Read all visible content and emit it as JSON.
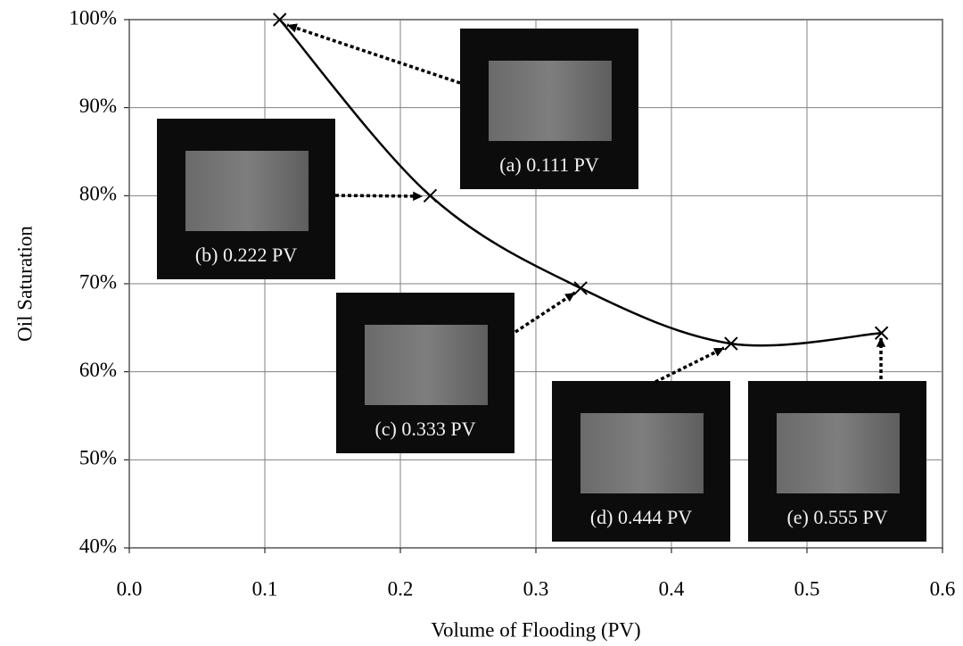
{
  "chart_data": {
    "type": "line",
    "x_label": "Volume of Flooding (PV)",
    "y_label": "Oil Saturation",
    "series": [
      {
        "color": "#000000",
        "x": [
          0.111,
          0.222,
          0.333,
          0.444,
          0.555
        ],
        "values": [
          100,
          80,
          69.5,
          63.2,
          64.4
        ]
      }
    ],
    "xlim": [
      0,
      0.6
    ],
    "xticks": [
      {
        "value": 0,
        "label": "0.0"
      },
      0.1,
      0.2,
      0.3,
      0.4,
      0.5,
      0.6
    ],
    "ylim": [
      40,
      100
    ],
    "yticks": [
      {
        "value": 40,
        "label": "40%"
      },
      {
        "value": 50,
        "label": "50%"
      },
      {
        "value": 60,
        "label": "60%"
      },
      {
        "value": 70,
        "label": "70%"
      },
      {
        "value": 80,
        "label": "80%"
      },
      {
        "value": 90,
        "label": "90%"
      },
      {
        "value": 100,
        "label": "100%"
      }
    ],
    "grid": true,
    "annotations": [
      "(a) 0.111 PV",
      "(b) 0.222 PV",
      "(c) 0.333 PV",
      "(d) 0.444 PV",
      "(e) 0.555 PV"
    ]
  }
}
